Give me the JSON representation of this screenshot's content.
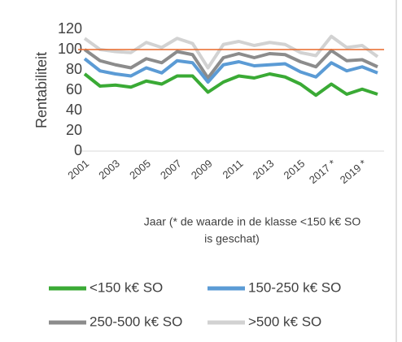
{
  "chart_data": {
    "type": "line",
    "ylabel": "Rentabiliteit",
    "xlabel": [
      "Jaar (* de waarde in de klasse <150 k€ SO",
      "is geschat)"
    ],
    "categories": [
      "2001",
      null,
      "2003",
      null,
      "2005",
      null,
      "2007",
      null,
      "2009",
      null,
      "2011",
      null,
      "2013",
      null,
      "2015",
      null,
      "2017 *",
      null,
      "2019 *",
      null
    ],
    "ylim": [
      0,
      120
    ],
    "yticks": [
      0,
      20,
      40,
      60,
      80,
      100,
      120
    ],
    "reference_line": {
      "value": 100,
      "color": "#e8692a"
    },
    "series": [
      {
        "name": "<150 k€ SO",
        "color": "#3aaa35",
        "values": [
          76,
          64,
          65,
          63,
          69,
          66,
          74,
          74,
          58,
          68,
          74,
          72,
          76,
          73,
          66,
          55,
          66,
          56,
          61,
          56
        ]
      },
      {
        "name": "150-250 k€ SO",
        "color": "#5b9bd5",
        "values": [
          91,
          79,
          76,
          74,
          82,
          77,
          89,
          87,
          68,
          85,
          88,
          84,
          85,
          86,
          78,
          73,
          87,
          79,
          83,
          77
        ]
      },
      {
        "name": "250-500 k€ SO",
        "color": "#8c8c8c",
        "values": [
          100,
          89,
          85,
          82,
          91,
          87,
          98,
          95,
          72,
          92,
          96,
          92,
          96,
          95,
          88,
          83,
          99,
          89,
          90,
          83
        ]
      },
      {
        "name": ">500 k€ SO",
        "color": "#d2d2d2",
        "values": [
          111,
          100,
          98,
          97,
          107,
          102,
          111,
          106,
          82,
          105,
          108,
          104,
          107,
          105,
          97,
          94,
          113,
          102,
          104,
          93
        ]
      }
    ]
  }
}
